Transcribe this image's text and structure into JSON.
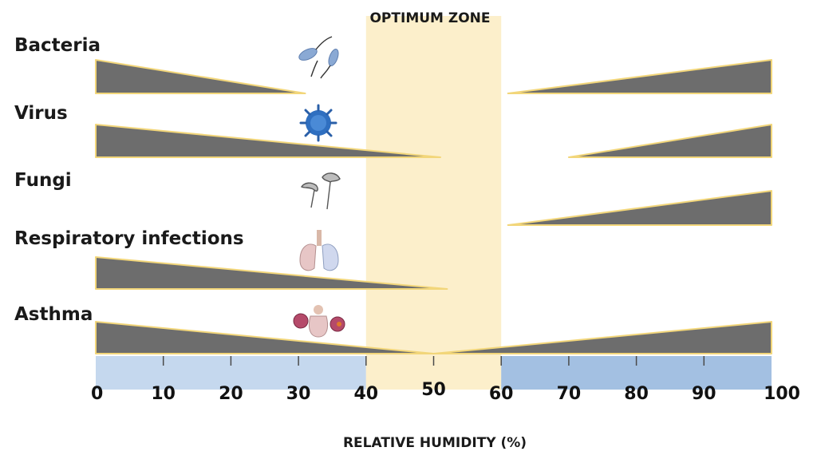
{
  "zone_label": "OPTIMUM ZONE",
  "axis_title": "RELATIVE HUMIDITY (%)",
  "ticks": [
    "0",
    "10",
    "20",
    "30",
    "40",
    "50",
    "60",
    "70",
    "80",
    "90",
    "100"
  ],
  "optimum_zone": [
    40,
    60
  ],
  "colors": {
    "zone": "#fcefcb",
    "wedge": "#6d6d6d",
    "wedge_outline": "#f2d67a",
    "axis_light": "#c5d8ee",
    "axis_dark": "#a3c0e2",
    "tick": "#4a4a4a"
  },
  "rows": [
    {
      "label": "Bacteria",
      "icon": "bacteria-icon",
      "left": {
        "from": 0,
        "to": 31
      },
      "right": {
        "from": 61,
        "to": 100
      }
    },
    {
      "label": "Virus",
      "icon": "virus-icon",
      "left": {
        "from": 0,
        "to": 51
      },
      "right": {
        "from": 70,
        "to": 100
      }
    },
    {
      "label": "Fungi",
      "icon": "fungi-icon",
      "left": null,
      "right": {
        "from": 61,
        "to": 100
      }
    },
    {
      "label": "Respiratory infections",
      "icon": "lungs-icon",
      "left": {
        "from": 0,
        "to": 52
      },
      "right": null
    },
    {
      "label": "Asthma",
      "icon": "asthma-icon",
      "left": {
        "from": 0,
        "to": 50
      },
      "right": {
        "from": 50,
        "to": 100
      }
    }
  ]
}
